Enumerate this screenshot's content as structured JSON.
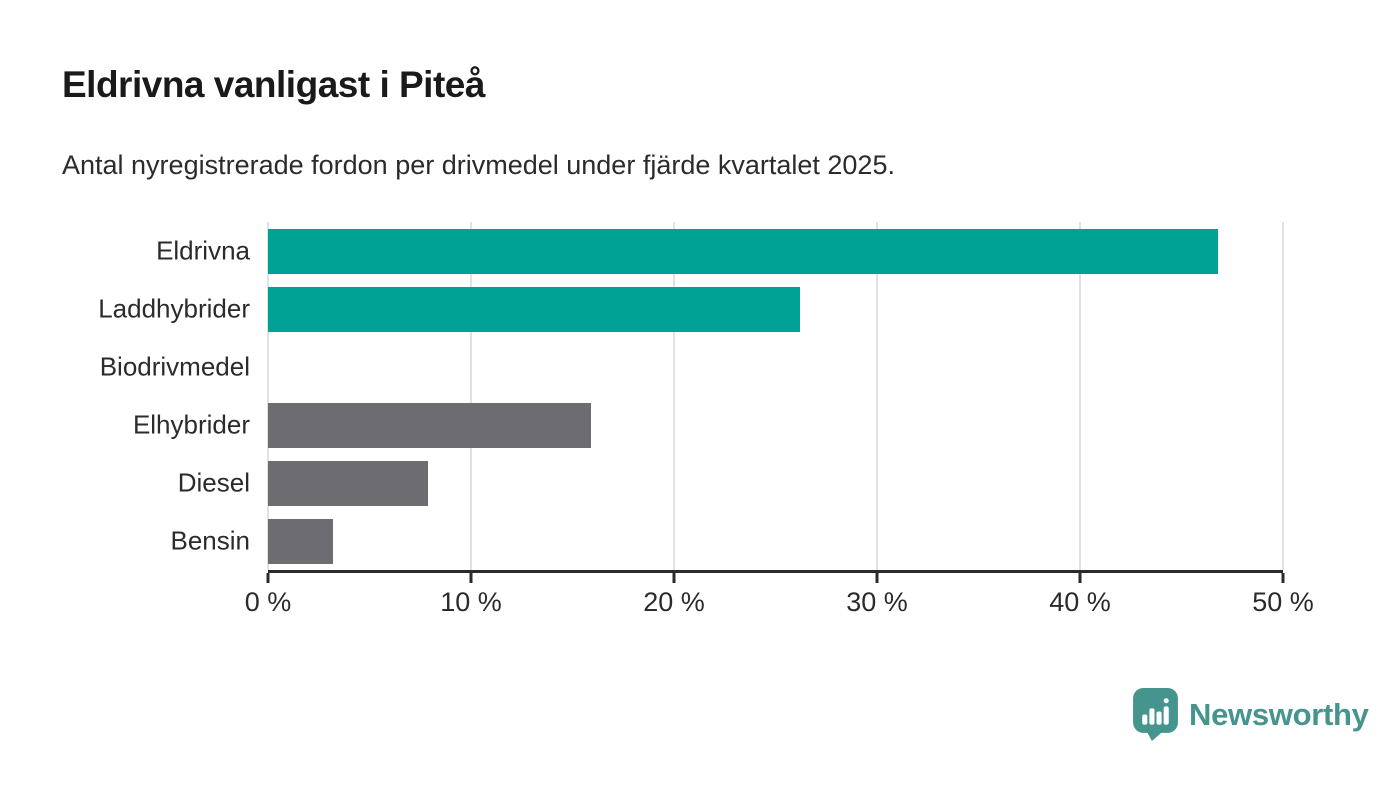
{
  "header": {
    "title": "Eldrivna vanligast i Piteå",
    "subtitle": "Antal nyregistrerade fordon per drivmedel under fjärde kvartalet 2025."
  },
  "chart_data": {
    "type": "bar",
    "orientation": "horizontal",
    "title": "Eldrivna vanligast i Piteå",
    "xlabel": "",
    "ylabel": "",
    "categories": [
      "Eldrivna",
      "Laddhybrider",
      "Biodrivmedel",
      "Elhybrider",
      "Diesel",
      "Bensin"
    ],
    "values": [
      46.8,
      26.2,
      0,
      15.9,
      7.9,
      3.2
    ],
    "unit": "%",
    "bar_colors": [
      "#00a296",
      "#00a296",
      "#00a296",
      "#6d6d71",
      "#6d6d71",
      "#6d6d71"
    ],
    "xlim": [
      0,
      50
    ],
    "x_ticks": [
      0,
      10,
      20,
      30,
      40,
      50
    ],
    "x_tick_labels": [
      "0 %",
      "10 %",
      "20 %",
      "30 %",
      "40 %",
      "50 %"
    ],
    "grid": true,
    "grid_color": "#e2e2e2",
    "axis_color": "#2b2b2b",
    "legend": "none"
  },
  "branding": {
    "logo_text": "Newsworthy",
    "logo_color": "#45948e",
    "icon": "newsworthy-speech-bubble-bar-chart-icon"
  }
}
